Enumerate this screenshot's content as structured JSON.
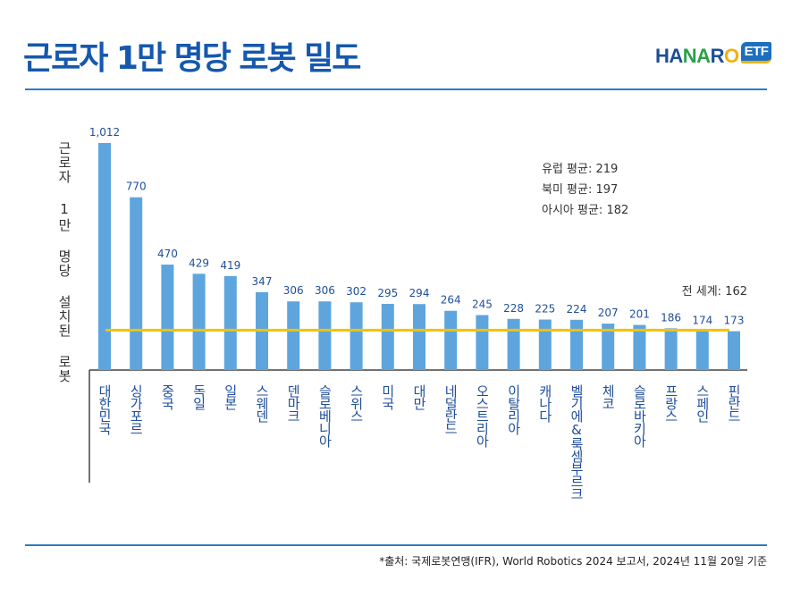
{
  "title": "근로자 1만 명당 로봇 밀도",
  "logo": {
    "text": "HANARO ETF"
  },
  "source": "*출처: 국제로봇연맹(IFR), World Robotics 2024 보고서, 2024년 11월 20일 기준",
  "chart_data": {
    "type": "bar",
    "title": "근로자 1만 명당 로봇 밀도",
    "ylabel": "근로자 1만 명당 설치된 로봇",
    "categories": [
      "대한민국",
      "싱가포르",
      "중국",
      "독일",
      "일본",
      "스웨덴",
      "덴마크",
      "슬로베니아",
      "스위스",
      "미국",
      "대만",
      "네덜란드",
      "오스트리아",
      "이탈리아",
      "캐나다",
      "벨기에&룩셈부르크",
      "체코",
      "슬로바키아",
      "프랑스",
      "스페인",
      "핀란드"
    ],
    "values": [
      1012,
      770,
      470,
      429,
      419,
      347,
      306,
      306,
      302,
      295,
      294,
      264,
      245,
      228,
      225,
      224,
      207,
      201,
      186,
      174,
      173
    ],
    "value_labels": [
      "1,012",
      "770",
      "470",
      "429",
      "419",
      "347",
      "306",
      "306",
      "302",
      "295",
      "294",
      "264",
      "245",
      "228",
      "225",
      "224",
      "207",
      "201",
      "186",
      "174",
      "173"
    ],
    "reference_line": {
      "label": "전 세계: 162",
      "value": 162,
      "color": "#f5c200"
    },
    "annotations": [
      "유럽 평균: 219",
      "북미 평균: 197",
      "아시아 평균: 182"
    ],
    "bar_color": "#5ea5dd",
    "label_color": "#1f4e9a",
    "ylim": [
      0,
      1012
    ],
    "grid": false
  }
}
